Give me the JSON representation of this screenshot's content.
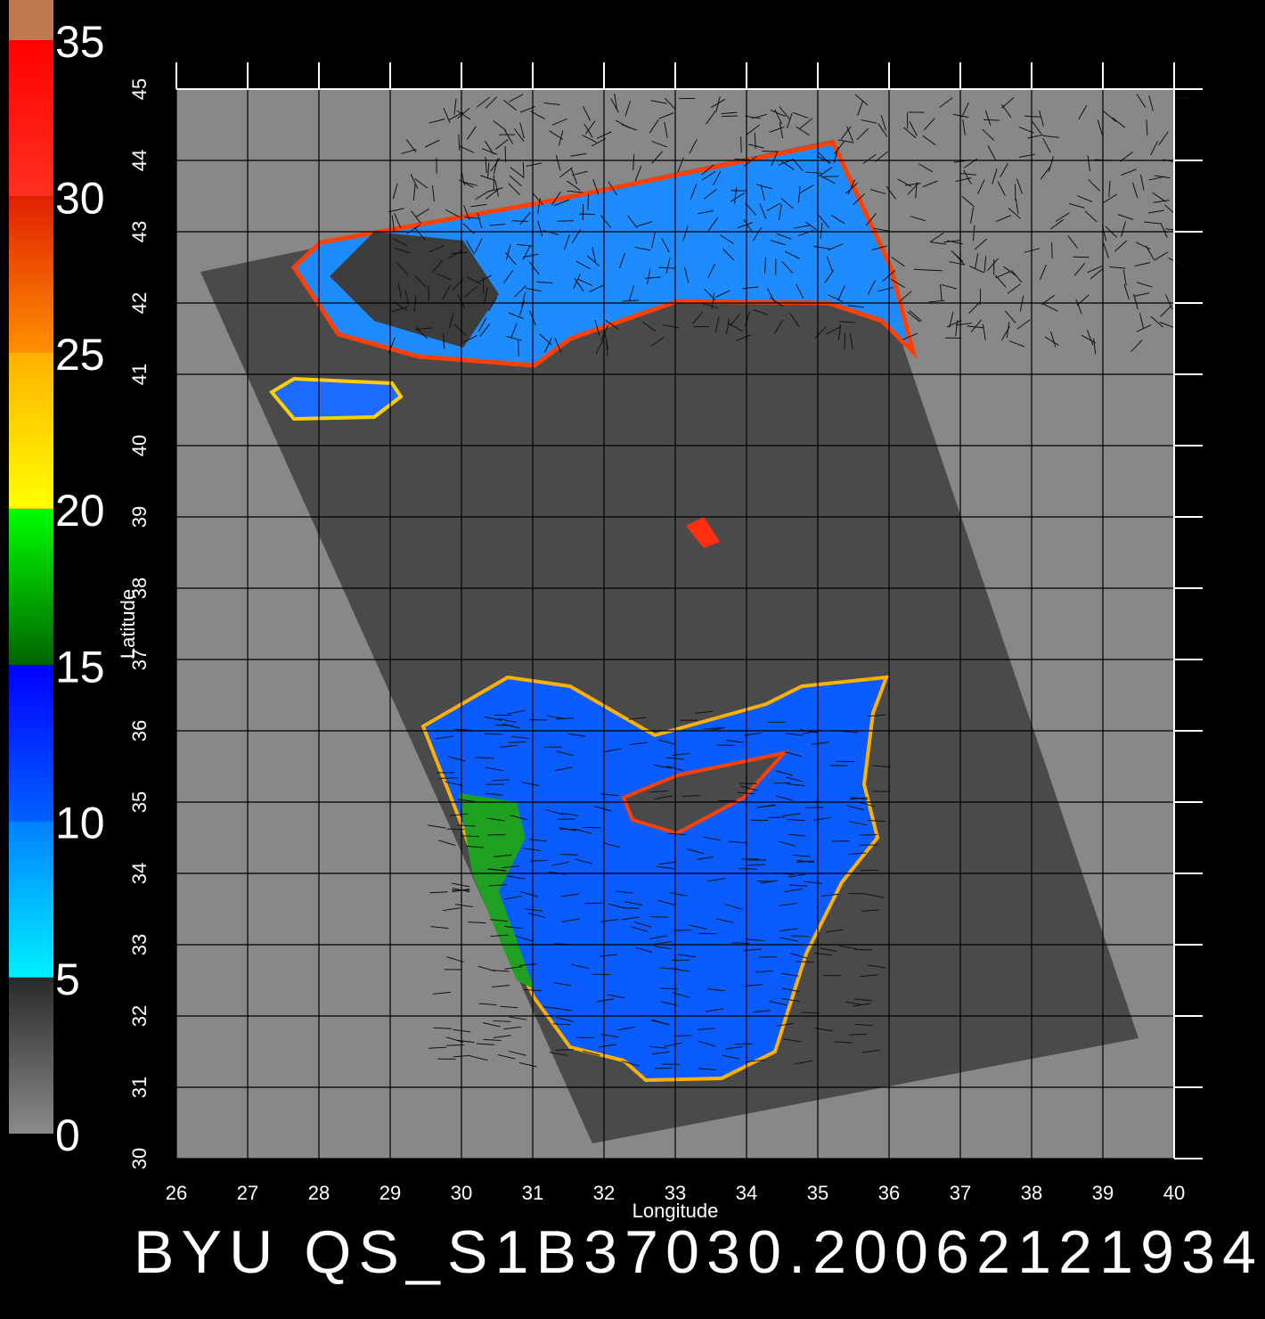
{
  "title": "BYU QS_S1B37030.20062121934",
  "x_axis": {
    "label": "Longitude",
    "lim": [
      26,
      40
    ],
    "ticks": [
      26,
      27,
      28,
      29,
      30,
      31,
      32,
      33,
      34,
      35,
      36,
      37,
      38,
      39,
      40
    ]
  },
  "y_axis": {
    "label": "Latitude",
    "lim": [
      30,
      45
    ],
    "ticks": [
      30,
      31,
      32,
      33,
      34,
      35,
      36,
      37,
      38,
      39,
      40,
      41,
      42,
      43,
      44,
      45
    ]
  },
  "colorbar": {
    "lim": [
      0,
      35
    ],
    "ticks": [
      0,
      5,
      10,
      15,
      20,
      25,
      30,
      35
    ],
    "bands": [
      [
        "#8a8a8a",
        "#2a2a2a"
      ],
      [
        "#00f0ff",
        "#0080ff"
      ],
      [
        "#0060ff",
        "#0000ff"
      ],
      [
        "#006400",
        "#00ff00"
      ],
      [
        "#ffff00",
        "#ffb000"
      ],
      [
        "#ff9000",
        "#e02000"
      ],
      [
        "#ff3020",
        "#ff0000"
      ]
    ]
  }
}
